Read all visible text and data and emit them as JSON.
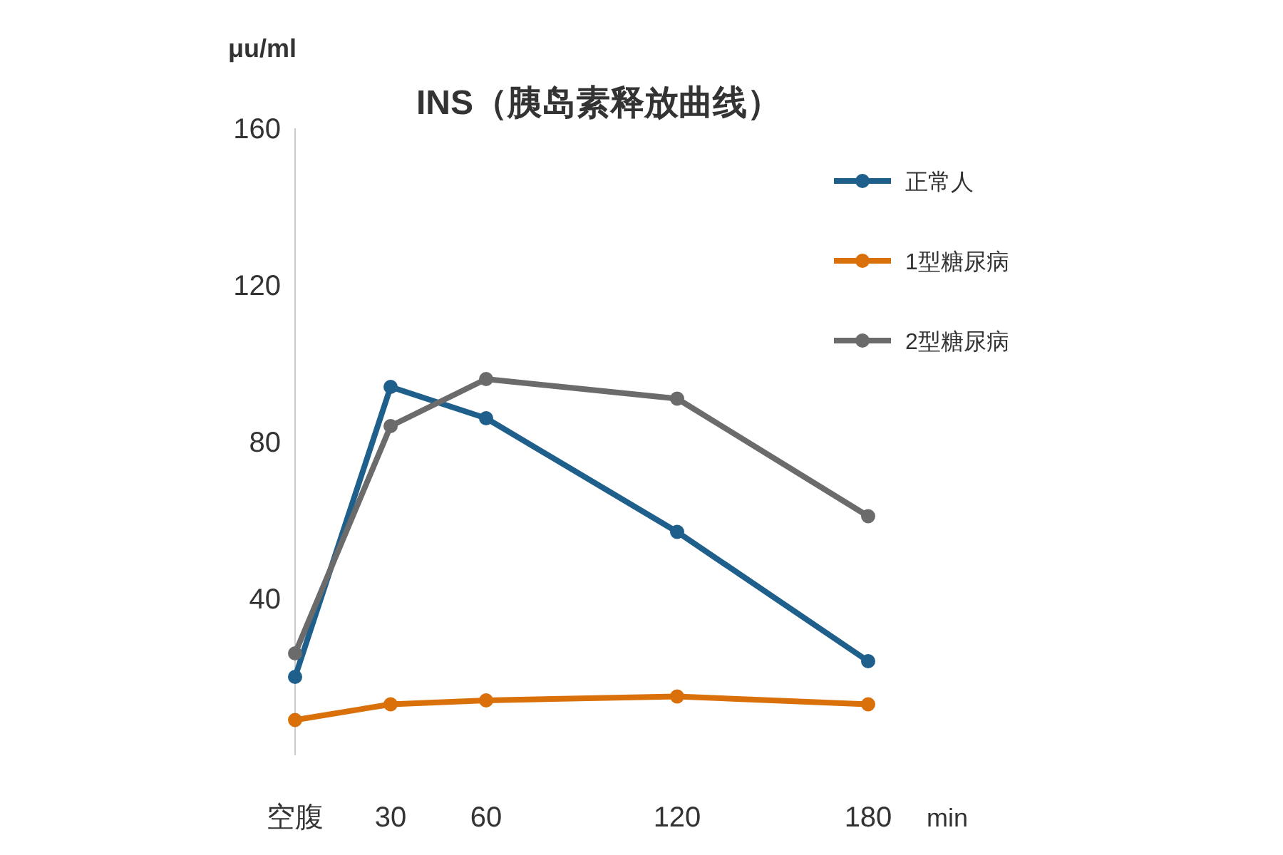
{
  "chart_data": {
    "type": "line",
    "title": "INS（胰岛素释放曲线）",
    "xlabel": "min",
    "ylabel": "μu/ml",
    "x": [
      0,
      30,
      60,
      120,
      180
    ],
    "xlim": [
      0,
      180
    ],
    "xticks": [
      {
        "value": 0,
        "label": "空腹"
      },
      30,
      60,
      120,
      180
    ],
    "ylim": [
      0,
      160
    ],
    "yticks": [
      40,
      80,
      120,
      160
    ],
    "marker": "circle",
    "line_style": "solid",
    "grid": false,
    "legend": "top right",
    "series": [
      {
        "name": "正常人",
        "color": "#1f5f8b",
        "values": [
          20,
          94,
          86,
          57,
          24
        ]
      },
      {
        "name": "1型糖尿病",
        "color": "#d9700a",
        "values": [
          9,
          13,
          14,
          15,
          13
        ]
      },
      {
        "name": "2型糖尿病",
        "color": "#6b6b6b",
        "values": [
          26,
          84,
          96,
          91,
          61
        ]
      }
    ]
  }
}
